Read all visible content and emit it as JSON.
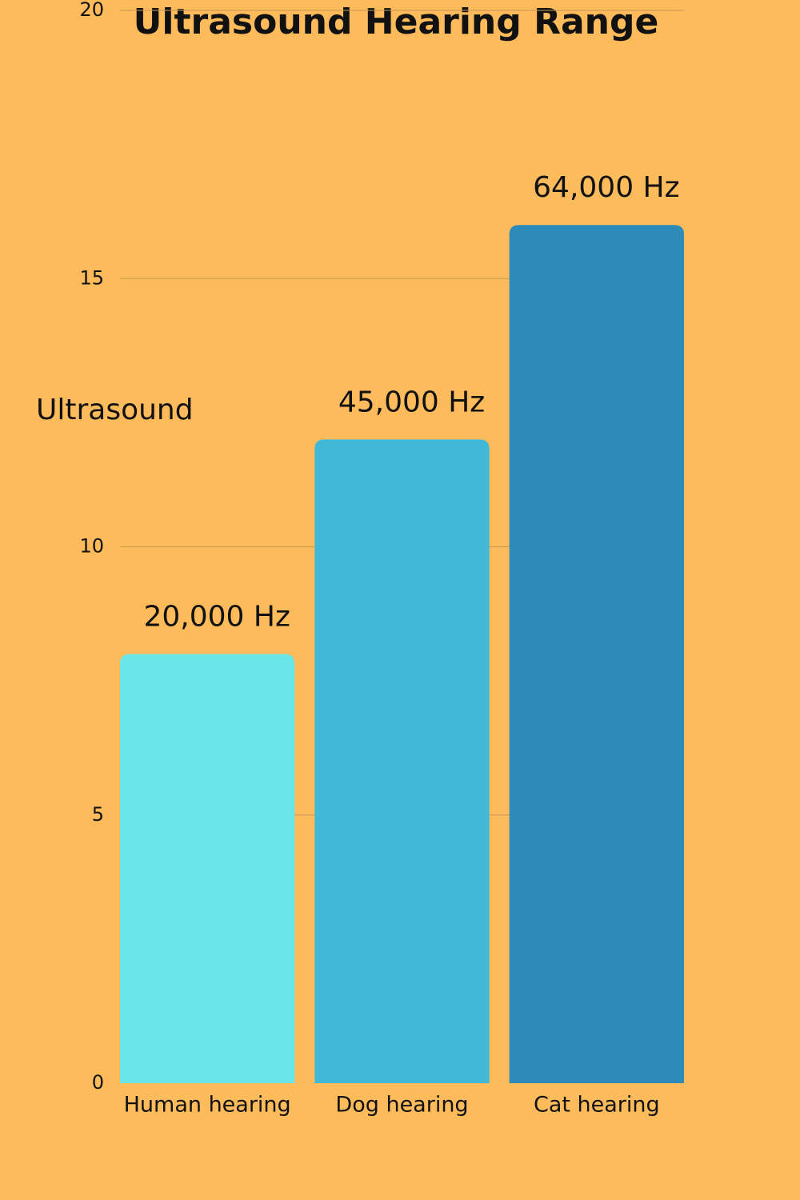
{
  "chart_data": {
    "type": "bar",
    "title": "Ultrasound  Hearing Range",
    "y_label": "Ultrasound",
    "categories": [
      "Human hearing",
      "Dog hearing",
      "Cat hearing"
    ],
    "values": [
      8,
      12,
      16
    ],
    "colors": [
      "#6ce5e8",
      "#41b8d5",
      "#2d8bba"
    ],
    "annotations": [
      "20,000 Hz",
      "45,000 Hz",
      "64,000 Hz"
    ],
    "ylim": [
      0,
      20
    ],
    "yticks": [
      0,
      5,
      10,
      15,
      20
    ],
    "grid": true
  }
}
